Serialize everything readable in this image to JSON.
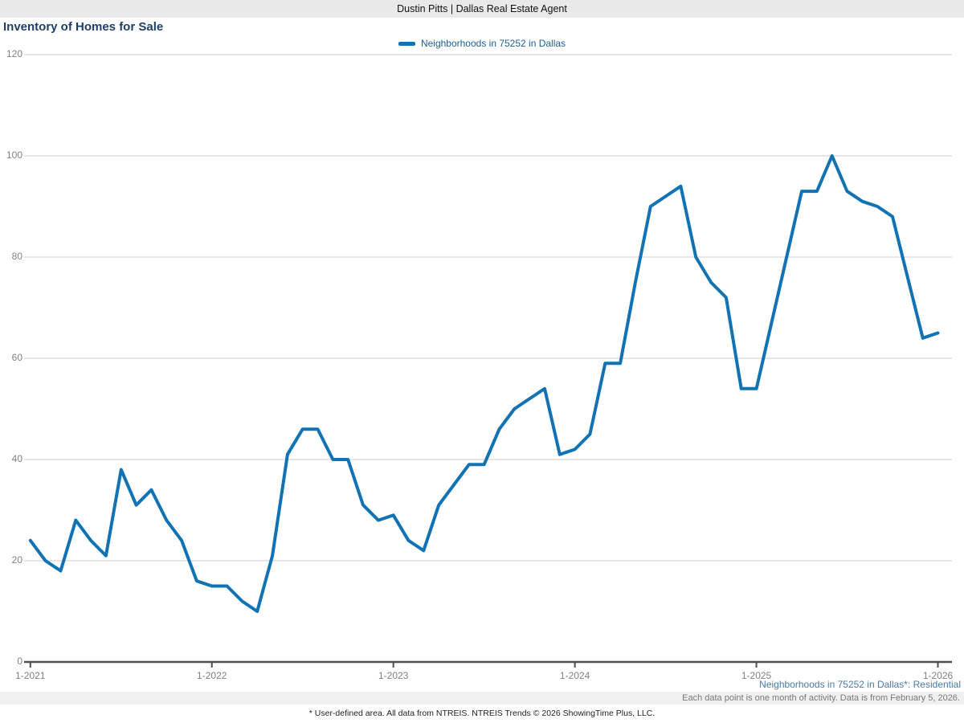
{
  "header": {
    "title": "Dustin Pitts | Dallas Real Estate Agent"
  },
  "chart": {
    "title": "Inventory of Homes for Sale",
    "legend_label": "Neighborhoods in 75252 in Dallas"
  },
  "footer": {
    "series_caption": "Neighborhoods in 75252 in Dallas*: Residential",
    "data_note": "Each data point is one month of activity. Data is from February 5, 2026.",
    "disclaimer": "* User-defined area. All data from NTREIS. NTREIS Trends © 2026 ShowingTime Plus, LLC."
  },
  "colors": {
    "line": "#1173b4",
    "title": "#1f4066",
    "legend_text": "#1d5f96",
    "caption_blue": "#4a7aa6",
    "axis_text": "#808080",
    "grid": "#cccccc",
    "axis_line": "#4d4d4d",
    "header_bg": "#e9e9e9",
    "band_bg": "#f0f0f0"
  },
  "chart_data": {
    "type": "line",
    "title": "Inventory of Homes for Sale",
    "series_name": "Neighborhoods in 75252 in Dallas",
    "x_unit": "month",
    "start_month": "1-2021",
    "end_month": "1-2026",
    "values": [
      24,
      20,
      18,
      28,
      24,
      21,
      38,
      31,
      34,
      28,
      24,
      16,
      15,
      15,
      12,
      10,
      21,
      41,
      46,
      46,
      40,
      40,
      31,
      28,
      29,
      24,
      22,
      31,
      35,
      39,
      39,
      46,
      50,
      52,
      54,
      41,
      42,
      45,
      59,
      59,
      75,
      90,
      92,
      94,
      80,
      75,
      72,
      54,
      54,
      67,
      80,
      93,
      93,
      100,
      93,
      91,
      90,
      88,
      76,
      64,
      65
    ],
    "xticks": [
      {
        "label": "1-2021",
        "index": 0
      },
      {
        "label": "1-2022",
        "index": 12
      },
      {
        "label": "1-2023",
        "index": 24
      },
      {
        "label": "1-2024",
        "index": 36
      },
      {
        "label": "1-2025",
        "index": 48
      },
      {
        "label": "1-2026",
        "index": 60
      }
    ],
    "yticks": [
      0,
      20,
      40,
      60,
      80,
      100,
      120
    ],
    "ylim": [
      0,
      120
    ],
    "grid": "horizontal",
    "legend_position": "top-center"
  }
}
